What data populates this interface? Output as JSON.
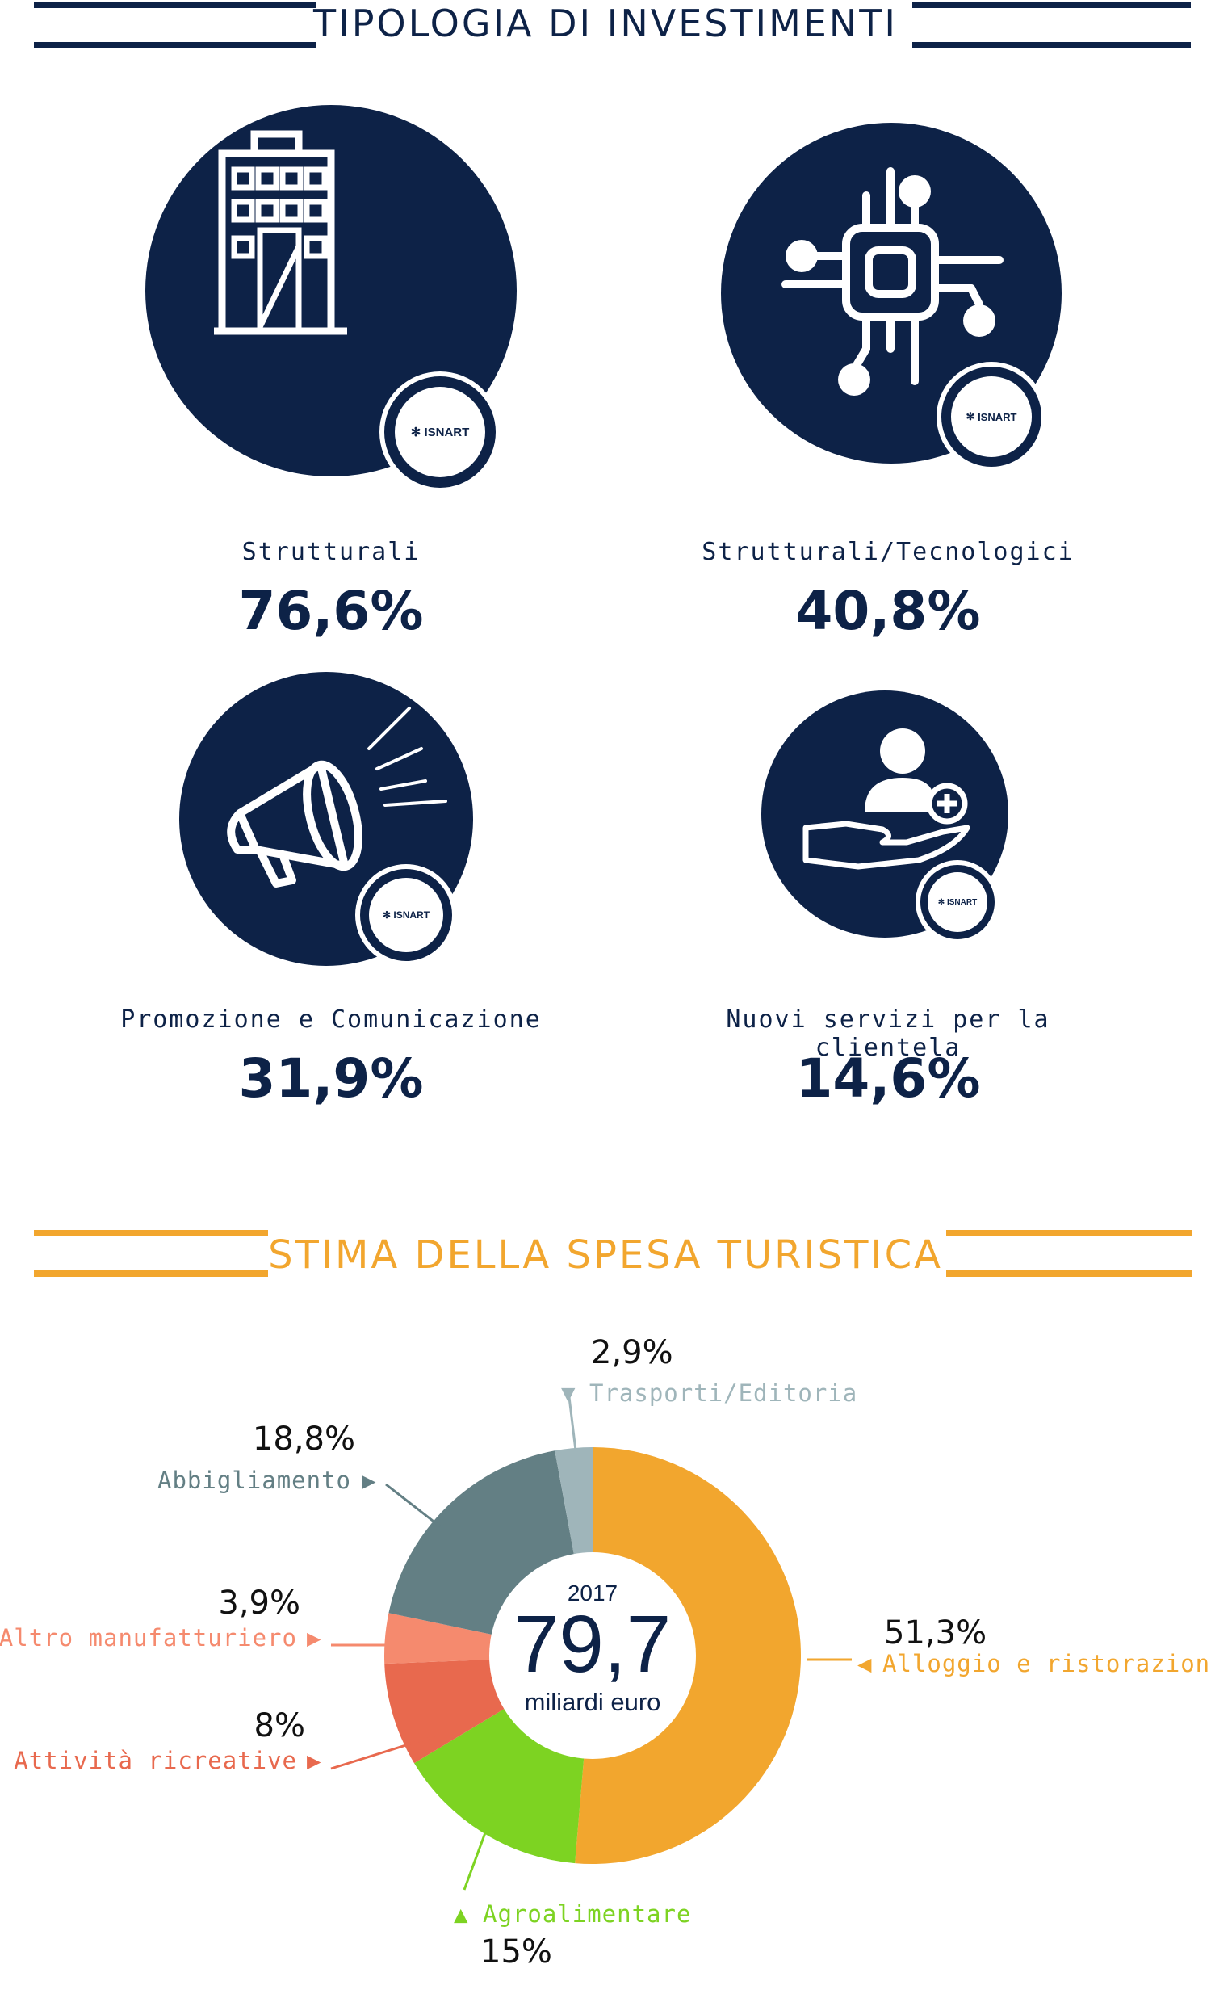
{
  "header1": {
    "title": "TIPOLOGIA DI INVESTIMENTI",
    "color": "#0d2247"
  },
  "investments": [
    {
      "label": "Strutturali",
      "value": "76,6%",
      "icon": "building-icon"
    },
    {
      "label": "Strutturali/Tecnologici",
      "value": "40,8%",
      "icon": "chip-icon"
    },
    {
      "label": "Promozione e Comunicazione",
      "value": "31,9%",
      "icon": "megaphone-icon"
    },
    {
      "label": "Nuovi servizi per la clientela",
      "value": "14,6%",
      "icon": "hand-user-plus-icon"
    }
  ],
  "badge_text": "ISNART",
  "header2": {
    "title": "STIMA DELLA SPESA TURISTICA",
    "color": "#f2a62e"
  },
  "chart_data": {
    "type": "pie",
    "center": {
      "year": "2017",
      "value": "79,7",
      "unit": "miliardi euro"
    },
    "slices": [
      {
        "name": "Alloggio e ristorazione",
        "value": 51.3,
        "label": "51,3%",
        "color": "#f2a62e"
      },
      {
        "name": "Agroalimentare",
        "value": 15,
        "label": "15%",
        "color": "#7dd322"
      },
      {
        "name": "Attività ricreative",
        "value": 8,
        "label": "8%",
        "color": "#e8694e"
      },
      {
        "name": "Altro manufatturiero",
        "value": 3.9,
        "label": "3,9%",
        "color": "#f58a6e"
      },
      {
        "name": "Abbigliamento",
        "value": 18.8,
        "label": "18,8%",
        "color": "#637f84"
      },
      {
        "name": "Trasporti/Editoria",
        "value": 2.9,
        "label": "2,9%",
        "color": "#9fb5ba"
      }
    ]
  }
}
